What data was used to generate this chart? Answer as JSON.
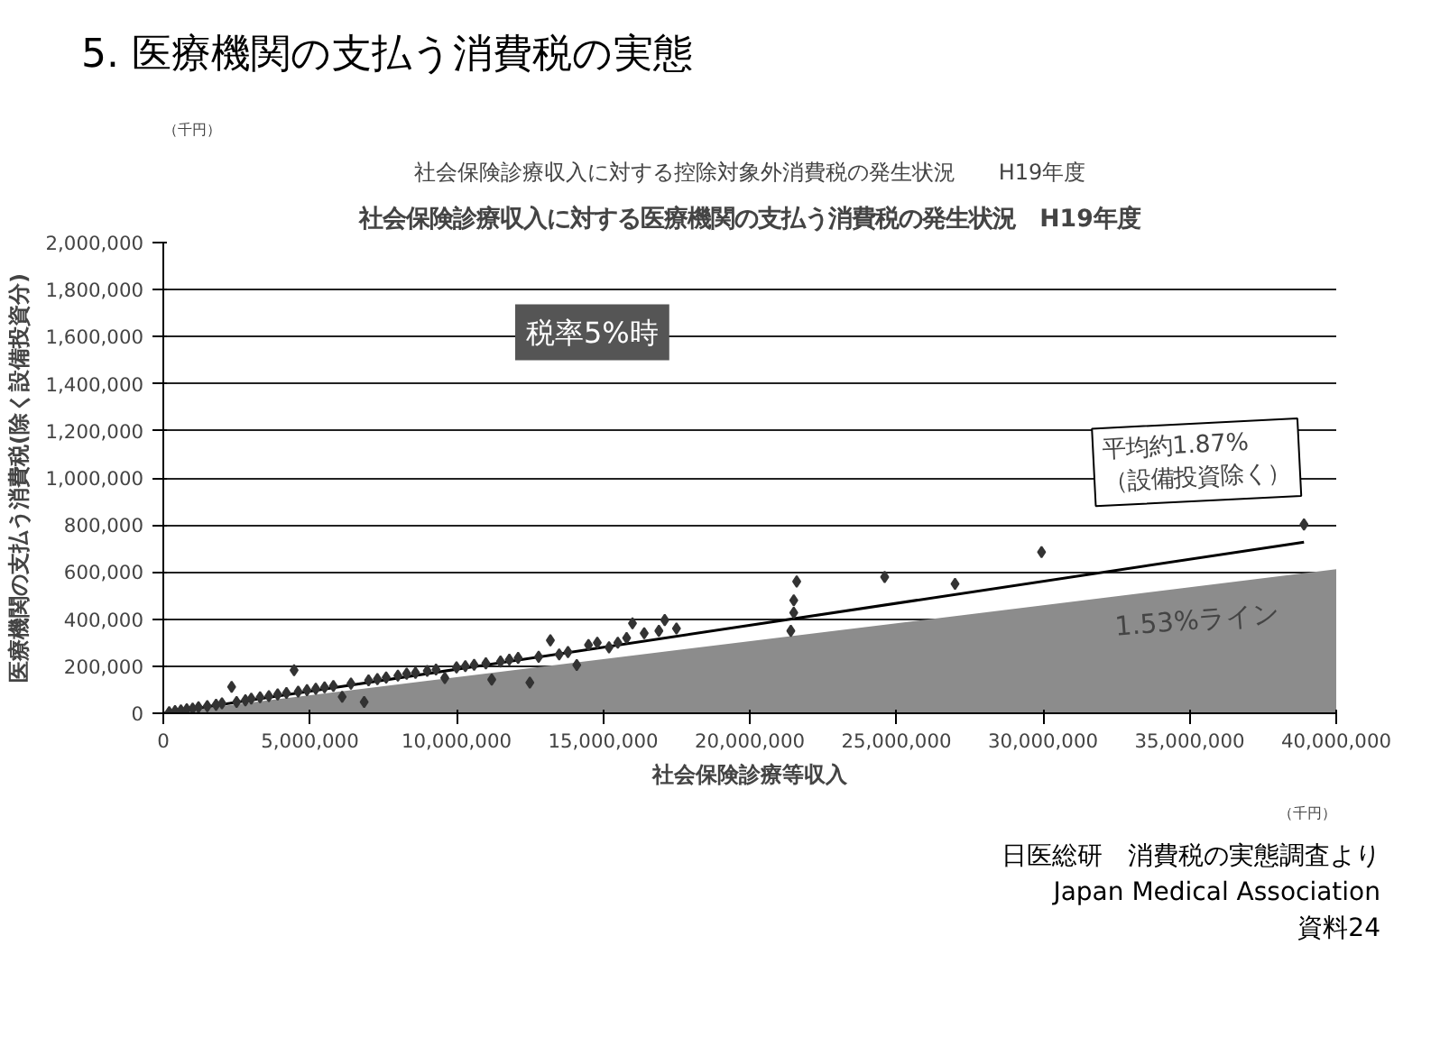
{
  "chart_data": {
    "type": "scatter",
    "title": "5. 医療機関の支払う消費税の実態",
    "subtitle": "社会保険診療収入に対する医療機関の支払う消費税の発生状況　H19年度",
    "xlabel": "社会保険診療等収入",
    "ylabel": "医療機関の支払う消費税(除く設備投資分)",
    "xlim": [
      0,
      40000000
    ],
    "xticks": [
      {
        "value": 0,
        "label": "0"
      },
      {
        "value": 5000000,
        "label": "5,000,000"
      },
      {
        "value": 10000000,
        "label": "10,000,000"
      },
      {
        "value": 15000000,
        "label": "15,000,000"
      },
      {
        "value": 20000000,
        "label": "20,000,000"
      },
      {
        "value": 25000000,
        "label": "25,000,000"
      },
      {
        "value": 30000000,
        "label": "30,000,000"
      },
      {
        "value": 35000000,
        "label": "35,000,000"
      },
      {
        "value": 40000000,
        "label": "40,000,000"
      }
    ],
    "ylim": [
      0,
      2000000
    ],
    "yticks": [
      {
        "value": 0,
        "label": "0"
      },
      {
        "value": 200000,
        "label": "200,000"
      },
      {
        "value": 400000,
        "label": "400,000"
      },
      {
        "value": 600000,
        "label": "600,000"
      },
      {
        "value": 800000,
        "label": "800,000"
      },
      {
        "value": 1000000,
        "label": "1,000,000"
      },
      {
        "value": 1200000,
        "label": "1,200,000"
      },
      {
        "value": 1400000,
        "label": "1,400,000"
      },
      {
        "value": 1600000,
        "label": "1,600,000"
      },
      {
        "value": 1800000,
        "label": "1,800,000"
      },
      {
        "value": 2000000,
        "label": "2,000,000"
      }
    ],
    "grid": "y",
    "marker": "diamond",
    "series": [
      {
        "type": "area",
        "marker": "none",
        "color": "#8c8c8c",
        "x": [
          0,
          40000000
        ],
        "values": [
          0,
          612000
        ]
      },
      {
        "type": "line",
        "marker": "none",
        "color": "#000000",
        "x": [
          0,
          38900000
        ],
        "values": [
          0,
          727000
        ]
      },
      {
        "color": "#333333",
        "x": [
          200000,
          400000,
          600000,
          800000,
          1000000,
          1200000,
          1500000,
          1800000,
          2000000,
          2330000,
          2500000,
          2800000,
          3000000,
          3300000,
          3600000,
          3900000,
          4200000,
          4460000,
          4600000,
          4900000,
          5200000,
          5500000,
          5800000,
          6100000,
          6400000,
          6850000,
          7000000,
          7300000,
          7600000,
          8000000,
          8300000,
          8600000,
          9000000,
          9300000,
          9600000,
          10000000,
          10300000,
          10600000,
          11000000,
          11200000,
          11500000,
          11800000,
          12100000,
          12500000,
          12800000,
          13200000,
          13500000,
          13800000,
          14100000,
          14500000,
          14800000,
          15200000,
          15500000,
          15800000,
          16000000,
          16400000,
          16900000,
          17100000,
          17500000,
          21400000,
          21500000,
          21500000,
          21600000,
          24600000,
          27000000,
          29950000,
          38900000
        ],
        "values": [
          5000,
          9000,
          12000,
          17000,
          20000,
          26000,
          30000,
          36000,
          42000,
          112000,
          48000,
          55000,
          62000,
          68000,
          73000,
          80000,
          86000,
          183000,
          92000,
          98000,
          104000,
          110000,
          116000,
          70000,
          126000,
          48000,
          140000,
          145000,
          152000,
          160000,
          168000,
          172000,
          180000,
          186000,
          150000,
          195000,
          200000,
          206000,
          212000,
          143000,
          220000,
          228000,
          235000,
          130000,
          240000,
          310000,
          250000,
          260000,
          205000,
          290000,
          300000,
          280000,
          300000,
          320000,
          382000,
          340000,
          350000,
          396000,
          360000,
          350000,
          427000,
          480000,
          560000,
          579000,
          550000,
          685000,
          802000
        ]
      }
    ],
    "annotations": [
      "社会保険診療収入に対する控除対象外消費税の発生状況　　H19年度",
      "（千円）",
      "（千円）",
      "税率5%時",
      "平均約1.87%\n（設備投資除く）",
      "1.53%ライン",
      "日医総研　消費税の実態調査より",
      "Japan Medical Association",
      "資料24"
    ]
  }
}
